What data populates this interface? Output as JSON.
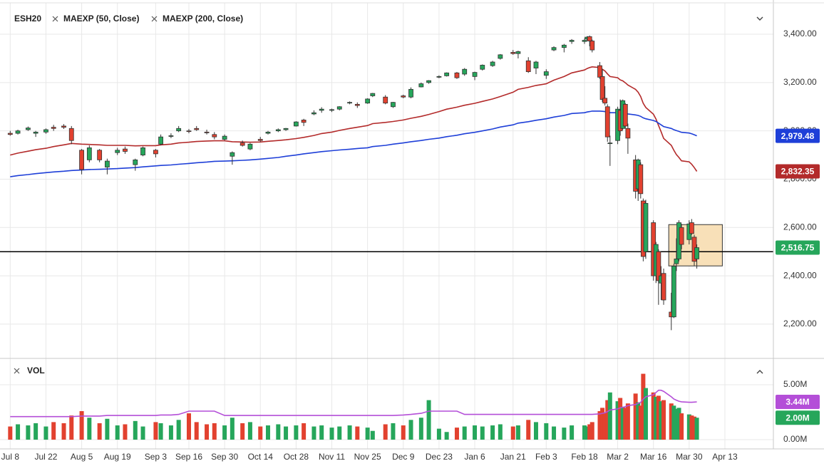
{
  "chart_data": {
    "type": "candlestick",
    "symbol": "ESH20",
    "x": [
      "Jul 8",
      "Jul 11",
      "Jul 15",
      "Jul 18",
      "Jul 22",
      "Jul 25",
      "Jul 29",
      "Aug 1",
      "Aug 5",
      "Aug 8",
      "Aug 12",
      "Aug 15",
      "Aug 19",
      "Aug 22",
      "Aug 26",
      "Aug 29",
      "Sep 3",
      "Sep 5",
      "Sep 9",
      "Sep 12",
      "Sep 16",
      "Sep 19",
      "Sep 23",
      "Sep 26",
      "Sep 30",
      "Oct 3",
      "Oct 7",
      "Oct 10",
      "Oct 14",
      "Oct 17",
      "Oct 21",
      "Oct 24",
      "Oct 28",
      "Oct 31",
      "Nov 4",
      "Nov 7",
      "Nov 11",
      "Nov 14",
      "Nov 18",
      "Nov 21",
      "Nov 25",
      "Nov 27",
      "Dec 2",
      "Dec 5",
      "Dec 9",
      "Dec 12",
      "Dec 16",
      "Dec 19",
      "Dec 23",
      "Dec 26",
      "Dec 30",
      "Jan 2",
      "Jan 6",
      "Jan 9",
      "Jan 13",
      "Jan 16",
      "Jan 21",
      "Jan 23",
      "Jan 27",
      "Jan 30",
      "Feb 3",
      "Feb 6",
      "Feb 10",
      "Feb 13",
      "Feb 18",
      "Feb 19",
      "Feb 20",
      "Feb 21",
      "Feb 24",
      "Feb 25",
      "Feb 26",
      "Feb 27",
      "Feb 28",
      "Mar 2",
      "Mar 3",
      "Mar 4",
      "Mar 5",
      "Mar 6",
      "Mar 9",
      "Mar 10",
      "Mar 11",
      "Mar 12",
      "Mar 13",
      "Mar 16",
      "Mar 17",
      "Mar 18",
      "Mar 19",
      "Mar 20",
      "Mar 23",
      "Mar 24",
      "Mar 25",
      "Mar 26",
      "Mar 27",
      "Mar 30",
      "Mar 31",
      "Apr 1",
      "Apr 2"
    ],
    "open": [
      2990,
      2990,
      3005,
      2990,
      2995,
      3015,
      3020,
      3010,
      2920,
      2880,
      2920,
      2850,
      2910,
      2925,
      2860,
      2900,
      2920,
      2945,
      2980,
      3000,
      3000,
      3010,
      2995,
      2985,
      2965,
      2895,
      2950,
      2925,
      2965,
      2990,
      3000,
      3005,
      3020,
      3045,
      3070,
      3085,
      3085,
      3090,
      3115,
      3110,
      3115,
      3145,
      3140,
      3100,
      3145,
      3140,
      3182,
      3200,
      3225,
      3228,
      3240,
      3235,
      3225,
      3255,
      3270,
      3300,
      3325,
      3320,
      3290,
      3260,
      3230,
      3335,
      3345,
      3370,
      3370,
      3380,
      3390,
      3372,
      3270,
      3225,
      3135,
      3100,
      2950,
      2960,
      3085,
      3010,
      3110,
      3010,
      2880,
      2760,
      2860,
      2710,
      2500,
      2620,
      2400,
      2500,
      2370,
      2410,
      2250,
      2230,
      2450,
      2470,
      2600,
      2550,
      2620,
      2560,
      2470
    ],
    "high": [
      3000,
      3005,
      3018,
      3000,
      3010,
      3025,
      3028,
      3020,
      2925,
      2940,
      2925,
      2885,
      2930,
      2935,
      2885,
      2935,
      2925,
      2985,
      2990,
      3020,
      3008,
      3020,
      3005,
      2995,
      2985,
      2915,
      2960,
      2950,
      2975,
      3000,
      3010,
      3012,
      3040,
      3050,
      3085,
      3098,
      3092,
      3102,
      3122,
      3118,
      3135,
      3157,
      3148,
      3120,
      3150,
      3180,
      3200,
      3210,
      3230,
      3242,
      3244,
      3260,
      3245,
      3275,
      3290,
      3318,
      3335,
      3332,
      3305,
      3290,
      3255,
      3350,
      3360,
      3380,
      3382,
      3392,
      3395,
      3378,
      3285,
      3255,
      3185,
      3110,
      2980,
      3100,
      3130,
      3130,
      3115,
      3030,
      2900,
      2885,
      2870,
      2720,
      2715,
      2630,
      2540,
      2510,
      2440,
      2430,
      2330,
      2450,
      2555,
      2630,
      2615,
      2630,
      2635,
      2570,
      2530
    ],
    "low": [
      2980,
      2985,
      3000,
      2975,
      2988,
      3000,
      3008,
      2945,
      2820,
      2870,
      2870,
      2820,
      2900,
      2905,
      2835,
      2895,
      2890,
      2940,
      2970,
      2995,
      2990,
      3000,
      2985,
      2965,
      2960,
      2860,
      2935,
      2920,
      2955,
      2985,
      2995,
      3000,
      3018,
      3020,
      3065,
      3075,
      3078,
      3085,
      3110,
      3095,
      3112,
      3140,
      3110,
      3095,
      3135,
      3135,
      3180,
      3195,
      3218,
      3225,
      3215,
      3228,
      3210,
      3250,
      3265,
      3295,
      3315,
      3300,
      3240,
      3235,
      3215,
      3330,
      3325,
      3360,
      3360,
      3375,
      3350,
      3325,
      3215,
      3120,
      3105,
      2955,
      2855,
      2945,
      2980,
      3005,
      3010,
      2905,
      2720,
      2710,
      2720,
      2460,
      2470,
      2380,
      2370,
      2280,
      2300,
      2280,
      2175,
      2225,
      2420,
      2460,
      2510,
      2530,
      2570,
      2440,
      2430
    ],
    "close": [
      2985,
      3000,
      3012,
      2995,
      3005,
      3010,
      3015,
      2960,
      2840,
      2930,
      2880,
      2875,
      2920,
      2915,
      2880,
      2930,
      2905,
      2975,
      2980,
      3010,
      2998,
      3005,
      2992,
      2975,
      2978,
      2910,
      2940,
      2945,
      2960,
      2995,
      3005,
      3010,
      3037,
      3035,
      3075,
      3090,
      3088,
      3100,
      3118,
      3105,
      3132,
      3155,
      3115,
      3118,
      3140,
      3172,
      3195,
      3208,
      3225,
      3240,
      3220,
      3255,
      3242,
      3272,
      3285,
      3315,
      3320,
      3328,
      3245,
      3285,
      3245,
      3345,
      3355,
      3375,
      3375,
      3388,
      3372,
      3335,
      3222,
      3130,
      3115,
      2975,
      2950,
      3090,
      3000,
      3125,
      3020,
      2970,
      2750,
      2880,
      2740,
      2480,
      2700,
      2400,
      2530,
      2380,
      2400,
      2300,
      2230,
      2440,
      2470,
      2620,
      2530,
      2615,
      2575,
      2460,
      2516.75
    ],
    "up_color": "#26a65b",
    "down_color": "#e2412f",
    "lines": [
      {
        "name": "MAEXP (50, Close)",
        "color": "#b32a2a",
        "values": [
          2900,
          2908,
          2916,
          2922,
          2928,
          2935,
          2942,
          2948,
          2945,
          2944,
          2942,
          2940,
          2940,
          2940,
          2938,
          2939,
          2939,
          2942,
          2945,
          2950,
          2953,
          2956,
          2958,
          2959,
          2959,
          2955,
          2954,
          2953,
          2954,
          2957,
          2960,
          2963,
          2968,
          2973,
          2981,
          2989,
          2995,
          3002,
          3010,
          3015,
          3022,
          3030,
          3035,
          3039,
          3045,
          3052,
          3060,
          3068,
          3080,
          3090,
          3098,
          3106,
          3114,
          3122,
          3132,
          3142,
          3160,
          3172,
          3180,
          3188,
          3195,
          3210,
          3225,
          3240,
          3252,
          3258,
          3262,
          3265,
          3262,
          3255,
          3248,
          3236,
          3225,
          3220,
          3211,
          3207,
          3199,
          3190,
          3172,
          3160,
          3142,
          3114,
          3097,
          3069,
          3049,
          3022,
          2997,
          2969,
          2940,
          2920,
          2902,
          2890,
          2876,
          2872,
          2862,
          2848,
          2832.35
        ]
      },
      {
        "name": "MAEXP (200, Close)",
        "color": "#1e3fd8",
        "values": [
          2810,
          2815,
          2819,
          2823,
          2827,
          2830,
          2833,
          2836,
          2838,
          2840,
          2841,
          2842,
          2844,
          2846,
          2848,
          2851,
          2855,
          2857,
          2859,
          2862,
          2865,
          2868,
          2871,
          2874,
          2875,
          2876,
          2878,
          2880,
          2883,
          2886,
          2890,
          2895,
          2900,
          2905,
          2910,
          2914,
          2918,
          2921,
          2924,
          2927,
          2930,
          2935,
          2940,
          2945,
          2950,
          2955,
          2960,
          2965,
          2970,
          2976,
          2982,
          2988,
          2994,
          3000,
          3008,
          3016,
          3025,
          3032,
          3038,
          3044,
          3050,
          3057,
          3064,
          3072,
          3075,
          3078,
          3080,
          3082,
          3082,
          3081,
          3080,
          3078,
          3075,
          3075,
          3074,
          3074,
          3072,
          3070,
          3066,
          3064,
          3060,
          3054,
          3050,
          3043,
          3039,
          3032,
          3025,
          3018,
          3010,
          3005,
          3001,
          2998,
          2994,
          2991,
          2988,
          2984,
          2979.48
        ]
      }
    ],
    "xlim": [
      "Jul 4",
      "May 2"
    ],
    "xticks": [
      "Jul 8",
      "Jul 22",
      "Aug 5",
      "Aug 19",
      "Sep 3",
      "Sep 16",
      "Sep 30",
      "Oct 14",
      "Oct 28",
      "Nov 11",
      "Nov 25",
      "Dec 9",
      "Dec 23",
      "Jan 6",
      "Jan 21",
      "Feb 3",
      "Feb 18",
      "Mar 2",
      "Mar 16",
      "Mar 30",
      "Apr 13"
    ],
    "ylim": [
      2067,
      3527
    ],
    "yticks": [
      {
        "value": 2200,
        "label": "2,200.00"
      },
      {
        "value": 2400,
        "label": "2,400.00"
      },
      {
        "value": 2600,
        "label": "2,600.00"
      },
      {
        "value": 2800,
        "label": "2,800.00"
      },
      {
        "value": 3000,
        "label": "3,000.00"
      },
      {
        "value": 3200,
        "label": "3,200.00"
      },
      {
        "value": 3400,
        "label": "3,400.00"
      }
    ],
    "grid": true,
    "hline": 2500,
    "box": {
      "x": [
        "Mar 22",
        "Apr 12"
      ],
      "y": [
        2441,
        2612
      ],
      "color": "#f8e0b8"
    },
    "badges": [
      {
        "value": 2979.48,
        "label": "2,979.48",
        "color": "#1e3fd8"
      },
      {
        "value": 2832.35,
        "label": "2,832.35",
        "color": "#b32a2a"
      },
      {
        "value": 2516.75,
        "label": "2,516.75",
        "color": "#26a65b"
      }
    ],
    "volume": {
      "title": "VOL",
      "values": [
        1.2,
        1.4,
        1.3,
        1.5,
        1.2,
        1.6,
        1.5,
        2.2,
        2.6,
        2.0,
        1.5,
        1.9,
        1.3,
        1.4,
        1.7,
        1.2,
        1.6,
        1.5,
        1.3,
        1.8,
        2.4,
        1.6,
        1.4,
        1.5,
        1.3,
        2.0,
        1.5,
        1.6,
        1.2,
        1.3,
        1.4,
        1.2,
        1.3,
        1.5,
        1.2,
        1.3,
        1.1,
        1.2,
        1.3,
        1.2,
        1.1,
        0.8,
        1.4,
        1.5,
        1.3,
        1.8,
        2.0,
        3.6,
        1.0,
        0.7,
        1.1,
        1.2,
        1.3,
        1.2,
        1.3,
        1.4,
        1.2,
        1.3,
        1.8,
        1.6,
        1.5,
        1.2,
        1.1,
        1.3,
        1.3,
        1.2,
        1.4,
        1.6,
        2.6,
        2.9,
        2.4,
        3.6,
        4.3,
        3.5,
        3.8,
        3.0,
        2.9,
        3.3,
        4.2,
        3.4,
        3.1,
        6.0,
        4.7,
        4.3,
        3.9,
        4.0,
        3.5,
        3.6,
        3.3,
        3.1,
        2.8,
        2.9,
        2.4,
        2.3,
        2.2,
        2.1,
        2.0
      ],
      "ma": {
        "color": "#b44fd8",
        "values": [
          2.1,
          2.1,
          2.1,
          2.1,
          2.1,
          2.1,
          2.1,
          2.1,
          2.15,
          2.15,
          2.15,
          2.2,
          2.2,
          2.2,
          2.2,
          2.2,
          2.2,
          2.25,
          2.25,
          2.3,
          2.6,
          2.6,
          2.6,
          2.6,
          2.2,
          2.2,
          2.2,
          2.2,
          2.2,
          2.2,
          2.2,
          2.2,
          2.2,
          2.2,
          2.2,
          2.2,
          2.2,
          2.2,
          2.2,
          2.2,
          2.2,
          2.2,
          2.2,
          2.2,
          2.25,
          2.3,
          2.4,
          2.6,
          2.6,
          2.6,
          2.6,
          2.3,
          2.3,
          2.3,
          2.3,
          2.3,
          2.3,
          2.3,
          2.3,
          2.3,
          2.3,
          2.3,
          2.3,
          2.3,
          2.3,
          2.3,
          2.3,
          2.3,
          2.35,
          2.4,
          2.45,
          2.55,
          2.7,
          2.8,
          2.9,
          2.95,
          3.0,
          3.1,
          3.2,
          3.3,
          3.4,
          3.7,
          3.9,
          4.1,
          4.3,
          4.5,
          4.5,
          4.4,
          3.9,
          3.7,
          3.6,
          3.5,
          3.45,
          3.4,
          3.4,
          3.42,
          3.44
        ]
      },
      "ylim": [
        -0.84,
        7.14
      ],
      "yticks": [
        {
          "value": 0,
          "label": "0.00M"
        },
        {
          "value": 5,
          "label": "5.00M"
        }
      ],
      "badges": [
        {
          "value": 3.44,
          "label": "3.44M",
          "color": "#b44fd8"
        },
        {
          "value": 2.0,
          "label": "2.00M",
          "color": "#26a65b"
        }
      ]
    }
  }
}
